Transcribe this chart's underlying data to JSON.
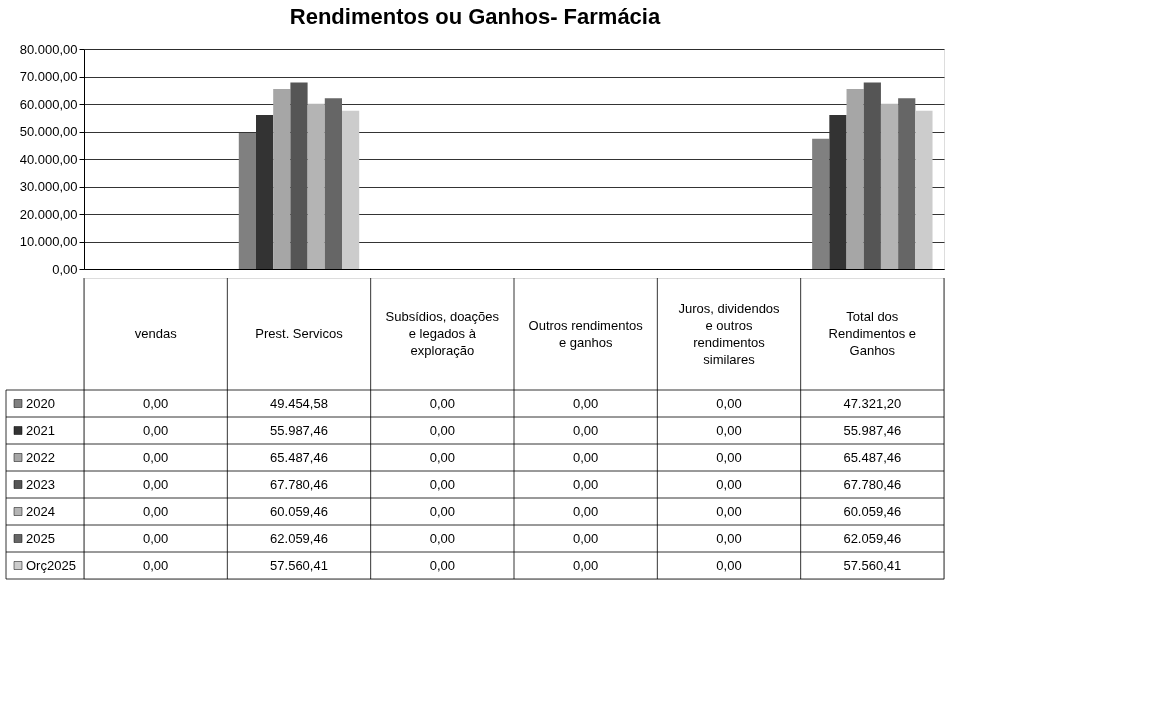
{
  "chart_data": {
    "type": "bar",
    "title": "Rendimentos ou Ganhos- Farmácia",
    "categories": [
      "vendas",
      "Prest. Servicos",
      "Subsídios, doações e legados à exploração",
      "Outros rendimentos e ganhos",
      "Juros, dividendos e outros rendimentos similares",
      "Total dos Rendimentos e Ganhos"
    ],
    "series": [
      {
        "name": "2020",
        "color": "#808080",
        "values": [
          0,
          49454.58,
          0,
          0,
          0,
          47321.2
        ],
        "value_labels": [
          "0,00",
          "49.454,58",
          "0,00",
          "0,00",
          "0,00",
          "47.321,20"
        ]
      },
      {
        "name": "2021",
        "color": "#333333",
        "values": [
          0,
          55987.46,
          0,
          0,
          0,
          55987.46
        ],
        "value_labels": [
          "0,00",
          "55.987,46",
          "0,00",
          "0,00",
          "0,00",
          "55.987,46"
        ]
      },
      {
        "name": "2022",
        "color": "#a6a6a6",
        "values": [
          0,
          65487.46,
          0,
          0,
          0,
          65487.46
        ],
        "value_labels": [
          "0,00",
          "65.487,46",
          "0,00",
          "0,00",
          "0,00",
          "65.487,46"
        ]
      },
      {
        "name": "2023",
        "color": "#555555",
        "values": [
          0,
          67780.46,
          0,
          0,
          0,
          67780.46
        ],
        "value_labels": [
          "0,00",
          "67.780,46",
          "0,00",
          "0,00",
          "0,00",
          "67.780,46"
        ]
      },
      {
        "name": "2024",
        "color": "#b4b4b4",
        "values": [
          0,
          60059.46,
          0,
          0,
          0,
          60059.46
        ],
        "value_labels": [
          "0,00",
          "60.059,46",
          "0,00",
          "0,00",
          "0,00",
          "60.059,46"
        ]
      },
      {
        "name": "2025",
        "color": "#666666",
        "values": [
          0,
          62059.46,
          0,
          0,
          0,
          62059.46
        ],
        "value_labels": [
          "0,00",
          "62.059,46",
          "0,00",
          "0,00",
          "0,00",
          "62.059,46"
        ]
      },
      {
        "name": "Orç2025",
        "color": "#cccccc",
        "values": [
          0,
          57560.41,
          0,
          0,
          0,
          57560.41
        ],
        "value_labels": [
          "0,00",
          "57.560,41",
          "0,00",
          "0,00",
          "0,00",
          "57.560,41"
        ]
      }
    ],
    "ylim": [
      0,
      80000
    ],
    "yticks": [
      {
        "value": 0,
        "label": "0,00"
      },
      {
        "value": 10000,
        "label": "10.000,00"
      },
      {
        "value": 20000,
        "label": "20.000,00"
      },
      {
        "value": 30000,
        "label": "30.000,00"
      },
      {
        "value": 40000,
        "label": "40.000,00"
      },
      {
        "value": 50000,
        "label": "50.000,00"
      },
      {
        "value": 60000,
        "label": "60.000,00"
      },
      {
        "value": 70000,
        "label": "70.000,00"
      },
      {
        "value": 80000,
        "label": "80.000,00"
      }
    ],
    "grid": "y",
    "legend": "bottom"
  }
}
